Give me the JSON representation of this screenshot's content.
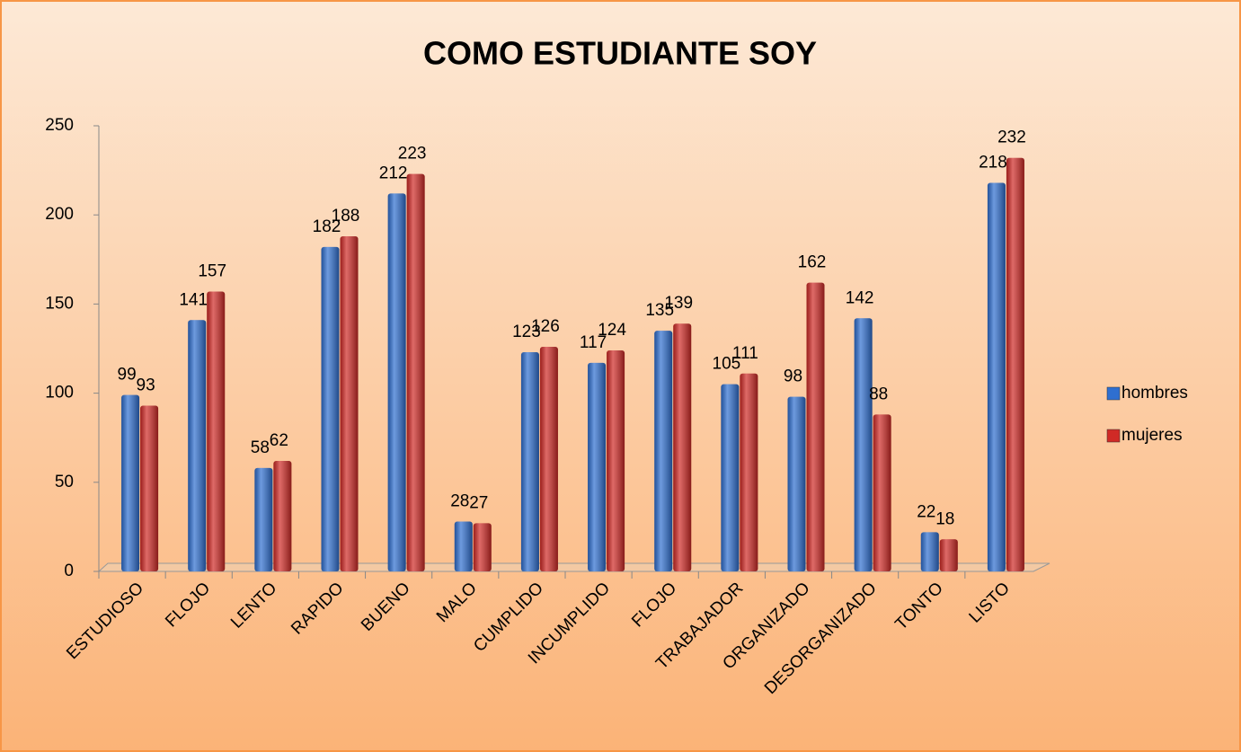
{
  "chart_data": {
    "type": "bar",
    "title": "COMO ESTUDIANTE SOY",
    "categories": [
      "ESTUDIOSO",
      "FLOJO",
      "LENTO",
      "RAPIDO",
      "BUENO",
      "MALO",
      "CUMPLIDO",
      "INCUMPLIDO",
      "FLOJO",
      "TRABAJADOR",
      "ORGANIZADO",
      "DESORGANIZADO",
      "TONTO",
      "LISTO"
    ],
    "series": [
      {
        "name": "hombres",
        "color": "#2f6fd0",
        "values": [
          99,
          141,
          58,
          182,
          212,
          28,
          123,
          117,
          135,
          105,
          98,
          142,
          22,
          218
        ]
      },
      {
        "name": "mujeres",
        "color": "#d02a26",
        "values": [
          93,
          157,
          62,
          188,
          223,
          27,
          126,
          124,
          139,
          111,
          162,
          88,
          18,
          232
        ]
      }
    ],
    "ylim": [
      0,
      250
    ],
    "yticks": [
      0,
      50,
      100,
      150,
      200,
      250
    ],
    "legend": "right"
  }
}
